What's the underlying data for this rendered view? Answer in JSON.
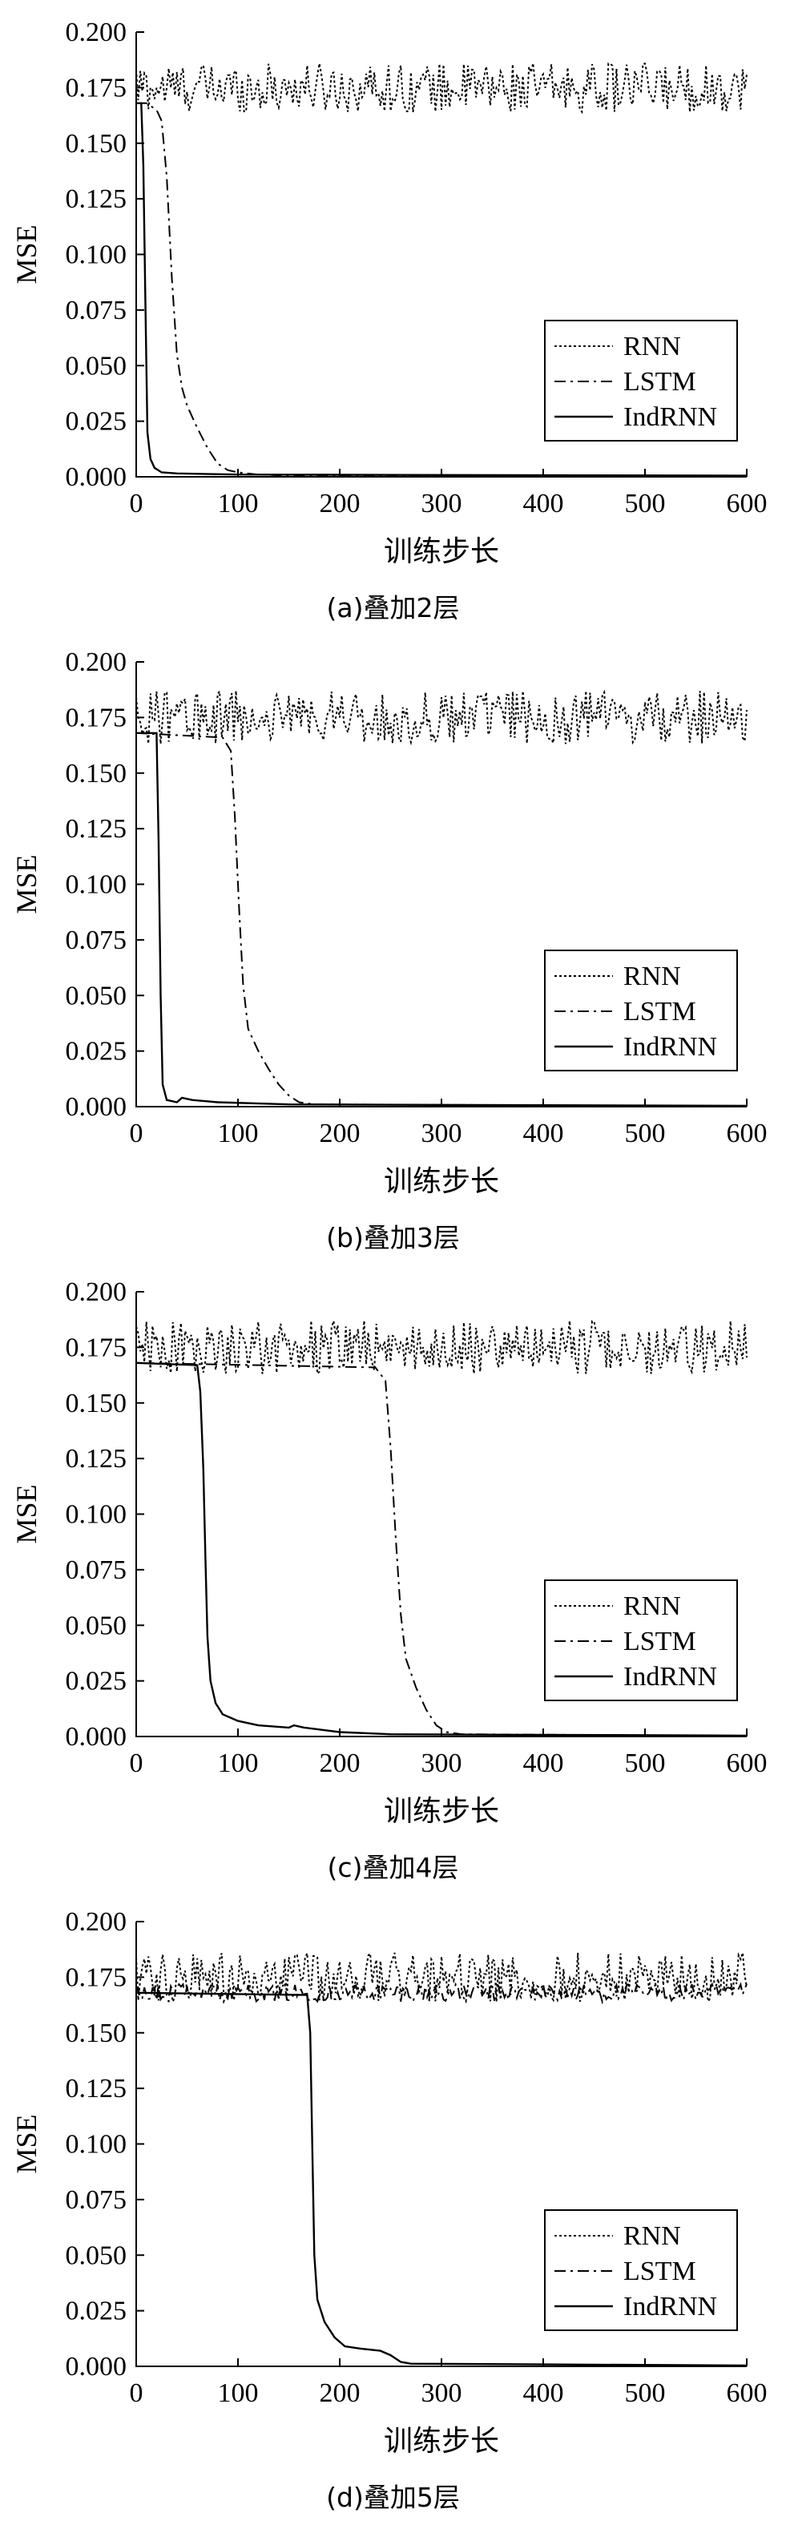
{
  "chart_data": [
    {
      "type": "line",
      "caption": "(a)叠加2层",
      "xlabel": "训练步长",
      "ylabel": "MSE",
      "xlim": [
        0,
        600
      ],
      "ylim": [
        0,
        0.2
      ],
      "x_ticks": [
        "0",
        "100",
        "200",
        "300",
        "400",
        "500",
        "600"
      ],
      "y_ticks": [
        "0.000",
        "0.025",
        "0.050",
        "0.075",
        "0.100",
        "0.125",
        "0.150",
        "0.175",
        "0.200"
      ],
      "legend": "lower-right",
      "series": [
        {
          "name": "RNN",
          "style": "dotted",
          "pattern": "noise",
          "level": 0.175,
          "amplitude": 0.011
        },
        {
          "name": "LSTM",
          "style": "dashdot",
          "points": [
            [
              0,
              0.168
            ],
            [
              10,
              0.168
            ],
            [
              20,
              0.165
            ],
            [
              25,
              0.16
            ],
            [
              30,
              0.135
            ],
            [
              35,
              0.09
            ],
            [
              40,
              0.055
            ],
            [
              45,
              0.04
            ],
            [
              50,
              0.032
            ],
            [
              60,
              0.022
            ],
            [
              70,
              0.013
            ],
            [
              80,
              0.006
            ],
            [
              90,
              0.003
            ],
            [
              100,
              0.002
            ],
            [
              120,
              0.001
            ],
            [
              150,
              0.0005
            ],
            [
              600,
              0.0003
            ]
          ]
        },
        {
          "name": "IndRNN",
          "style": "solid",
          "points": [
            [
              0,
              0.168
            ],
            [
              5,
              0.168
            ],
            [
              7,
              0.14
            ],
            [
              9,
              0.08
            ],
            [
              11,
              0.02
            ],
            [
              14,
              0.008
            ],
            [
              18,
              0.004
            ],
            [
              25,
              0.002
            ],
            [
              40,
              0.0015
            ],
            [
              100,
              0.001
            ],
            [
              600,
              0.0005
            ]
          ]
        }
      ]
    },
    {
      "type": "line",
      "caption": "(b)叠加3层",
      "xlabel": "训练步长",
      "ylabel": "MSE",
      "xlim": [
        0,
        600
      ],
      "ylim": [
        0,
        0.2
      ],
      "x_ticks": [
        "0",
        "100",
        "200",
        "300",
        "400",
        "500",
        "600"
      ],
      "y_ticks": [
        "0.000",
        "0.025",
        "0.050",
        "0.075",
        "0.100",
        "0.125",
        "0.150",
        "0.175",
        "0.200"
      ],
      "legend": "lower-right",
      "series": [
        {
          "name": "RNN",
          "style": "dotted",
          "pattern": "noise",
          "level": 0.175,
          "amplitude": 0.012
        },
        {
          "name": "LSTM",
          "style": "dashdot",
          "points": [
            [
              0,
              0.168
            ],
            [
              85,
              0.166
            ],
            [
              93,
              0.16
            ],
            [
              97,
              0.13
            ],
            [
              101,
              0.09
            ],
            [
              105,
              0.055
            ],
            [
              110,
              0.035
            ],
            [
              120,
              0.025
            ],
            [
              130,
              0.017
            ],
            [
              140,
              0.01
            ],
            [
              150,
              0.005
            ],
            [
              160,
              0.002
            ],
            [
              175,
              0.001
            ],
            [
              600,
              0.0003
            ]
          ]
        },
        {
          "name": "IndRNN",
          "style": "solid",
          "points": [
            [
              0,
              0.168
            ],
            [
              20,
              0.168
            ],
            [
              22,
              0.12
            ],
            [
              24,
              0.05
            ],
            [
              26,
              0.01
            ],
            [
              30,
              0.003
            ],
            [
              40,
              0.002
            ],
            [
              45,
              0.004
            ],
            [
              55,
              0.003
            ],
            [
              80,
              0.002
            ],
            [
              150,
              0.001
            ],
            [
              600,
              0.0004
            ]
          ]
        }
      ]
    },
    {
      "type": "line",
      "caption": "(c)叠加4层",
      "xlabel": "训练步长",
      "ylabel": "MSE",
      "xlim": [
        0,
        600
      ],
      "ylim": [
        0,
        0.2
      ],
      "x_ticks": [
        "0",
        "100",
        "200",
        "300",
        "400",
        "500",
        "600"
      ],
      "y_ticks": [
        "0.000",
        "0.025",
        "0.050",
        "0.075",
        "0.100",
        "0.125",
        "0.150",
        "0.175",
        "0.200"
      ],
      "legend": "lower-right",
      "series": [
        {
          "name": "RNN",
          "style": "dotted",
          "pattern": "noise",
          "level": 0.175,
          "amplitude": 0.012
        },
        {
          "name": "LSTM",
          "style": "dashdot",
          "points": [
            [
              0,
              0.168
            ],
            [
              235,
              0.166
            ],
            [
              245,
              0.16
            ],
            [
              250,
              0.13
            ],
            [
              255,
              0.09
            ],
            [
              260,
              0.055
            ],
            [
              265,
              0.035
            ],
            [
              275,
              0.022
            ],
            [
              285,
              0.012
            ],
            [
              295,
              0.005
            ],
            [
              305,
              0.002
            ],
            [
              320,
              0.001
            ],
            [
              600,
              0.0003
            ]
          ]
        },
        {
          "name": "IndRNN",
          "style": "solid",
          "points": [
            [
              0,
              0.168
            ],
            [
              60,
              0.167
            ],
            [
              63,
              0.155
            ],
            [
              66,
              0.12
            ],
            [
              68,
              0.08
            ],
            [
              70,
              0.045
            ],
            [
              73,
              0.025
            ],
            [
              78,
              0.015
            ],
            [
              85,
              0.01
            ],
            [
              100,
              0.007
            ],
            [
              120,
              0.005
            ],
            [
              150,
              0.004
            ],
            [
              155,
              0.005
            ],
            [
              165,
              0.004
            ],
            [
              200,
              0.002
            ],
            [
              250,
              0.001
            ],
            [
              600,
              0.0004
            ]
          ]
        }
      ]
    },
    {
      "type": "line",
      "caption": "(d)叠加5层",
      "xlabel": "训练步长",
      "ylabel": "MSE",
      "xlim": [
        0,
        600
      ],
      "ylim": [
        0,
        0.2
      ],
      "x_ticks": [
        "0",
        "100",
        "200",
        "300",
        "400",
        "500",
        "600"
      ],
      "y_ticks": [
        "0.000",
        "0.025",
        "0.050",
        "0.075",
        "0.100",
        "0.125",
        "0.150",
        "0.175",
        "0.200"
      ],
      "legend": "lower-right",
      "series": [
        {
          "name": "RNN",
          "style": "dotted",
          "pattern": "noise",
          "level": 0.175,
          "amplitude": 0.011
        },
        {
          "name": "LSTM",
          "style": "dashdot",
          "pattern": "noise",
          "level": 0.168,
          "amplitude": 0.004
        },
        {
          "name": "IndRNN",
          "style": "solid",
          "points": [
            [
              0,
              0.168
            ],
            [
              168,
              0.167
            ],
            [
              171,
              0.15
            ],
            [
              173,
              0.1
            ],
            [
              175,
              0.05
            ],
            [
              178,
              0.03
            ],
            [
              185,
              0.02
            ],
            [
              195,
              0.013
            ],
            [
              205,
              0.009
            ],
            [
              220,
              0.008
            ],
            [
              240,
              0.007
            ],
            [
              250,
              0.005
            ],
            [
              260,
              0.002
            ],
            [
              270,
              0.0012
            ],
            [
              600,
              0.0004
            ]
          ]
        }
      ]
    }
  ]
}
